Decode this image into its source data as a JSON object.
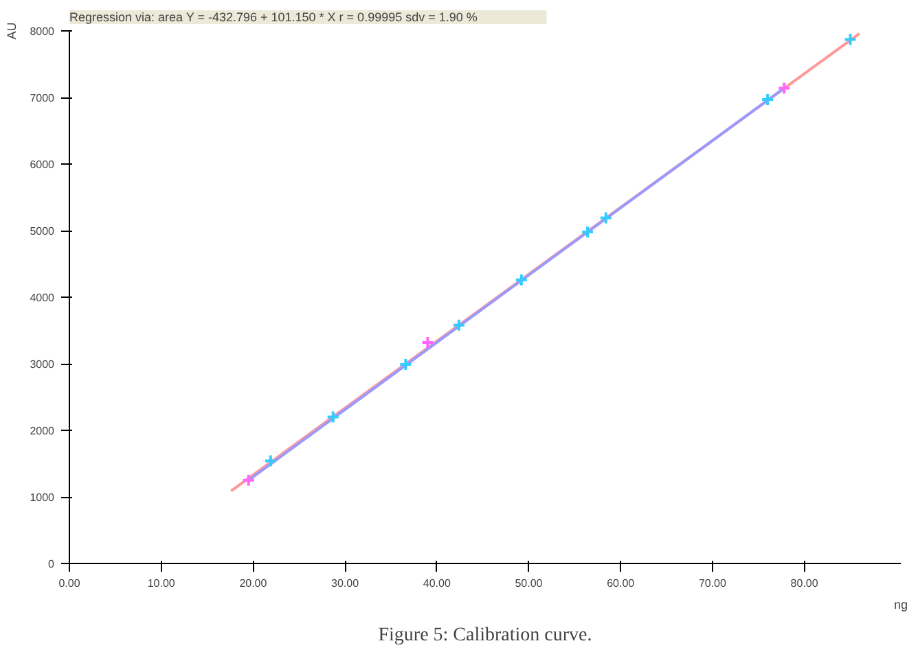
{
  "chart_data": {
    "type": "scatter",
    "title": "Regression via: area      Y = -432.796 + 101.150 * X          r = 0.99995       sdv = 1.90 %",
    "xlabel": "ng",
    "ylabel": "AU",
    "annotations": [
      "Figure 5: Calibration curve."
    ],
    "xlim": [
      0,
      90.5
    ],
    "ylim": [
      0,
      8000
    ],
    "xticks": [
      {
        "value": 0,
        "label": "0.00"
      },
      {
        "value": 10,
        "label": "10.00"
      },
      {
        "value": 20,
        "label": "20.00"
      },
      {
        "value": 30,
        "label": "30.00"
      },
      {
        "value": 40,
        "label": "40.00"
      },
      {
        "value": 50,
        "label": "50.00"
      },
      {
        "value": 60,
        "label": "60.00"
      },
      {
        "value": 70,
        "label": "70.00"
      },
      {
        "value": 80,
        "label": "80.00"
      }
    ],
    "yticks": [
      0,
      1000,
      2000,
      3000,
      4000,
      5000,
      6000,
      7000,
      8000
    ],
    "grid": false,
    "series": [
      {
        "type": "line",
        "color": "#ff9999",
        "x": [
          17.6,
          86.0
        ],
        "values": [
          1090,
          7960
        ],
        "marker": "none"
      },
      {
        "type": "line",
        "color": "#9999ff",
        "x": [
          19.5,
          77.8
        ],
        "values": [
          1250,
          7140
        ],
        "marker": "none"
      },
      {
        "color": "#33ccff",
        "marker": "cross",
        "x": [
          21.9,
          28.7,
          36.6,
          42.4,
          49.2,
          56.4,
          58.4,
          76.0,
          85.0
        ],
        "values": [
          1540,
          2200,
          2990,
          3580,
          4260,
          4980,
          5190,
          6970,
          7870
        ]
      },
      {
        "color": "#ff66ff",
        "marker": "cross",
        "x": [
          19.5,
          39.0,
          77.8
        ],
        "values": [
          1250,
          3320,
          7140
        ]
      }
    ]
  }
}
